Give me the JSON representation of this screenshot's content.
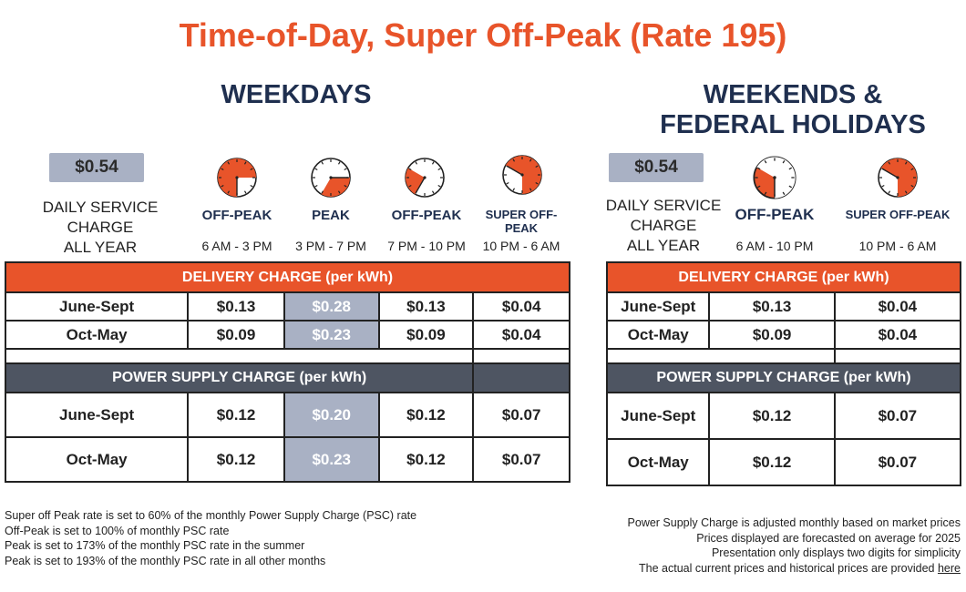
{
  "title": "Time-of-Day, Super Off-Peak (Rate 195)",
  "weekdays": {
    "heading": "WEEKDAYS",
    "service_charge": "$0.54",
    "service_label": [
      "DAILY SERVICE",
      "CHARGE",
      "ALL YEAR"
    ],
    "periods": [
      {
        "name": "OFF-PEAK",
        "hours": "6 AM - 3 PM",
        "start_hour": 6,
        "end_hour": 15
      },
      {
        "name": "PEAK",
        "hours": "3 PM - 7 PM",
        "start_hour": 15,
        "end_hour": 19
      },
      {
        "name": "OFF-PEAK",
        "hours": "7 PM - 10 PM",
        "start_hour": 19,
        "end_hour": 22
      },
      {
        "name": "SUPER OFF-PEAK",
        "hours": "10 PM - 6 AM",
        "start_hour": 22,
        "end_hour": 6
      }
    ],
    "delivery_header": "DELIVERY CHARGE  (per kWh)",
    "delivery_rows": [
      {
        "season": "June-Sept",
        "values": [
          "$0.13",
          "$0.28",
          "$0.13",
          "$0.04"
        ]
      },
      {
        "season": "Oct-May",
        "values": [
          "$0.09",
          "$0.23",
          "$0.09",
          "$0.04"
        ]
      }
    ],
    "supply_header": "POWER SUPPLY CHARGE  (per kWh)",
    "supply_rows": [
      {
        "season": "June-Sept",
        "values": [
          "$0.12",
          "$0.20",
          "$0.12",
          "$0.07"
        ]
      },
      {
        "season": "Oct-May",
        "values": [
          "$0.12",
          "$0.23",
          "$0.12",
          "$0.07"
        ]
      }
    ]
  },
  "weekends": {
    "heading_line1": "WEEKENDS &",
    "heading_line2": "FEDERAL HOLIDAYS",
    "service_charge": "$0.54",
    "service_label": [
      "DAILY SERVICE",
      "CHARGE",
      "ALL YEAR"
    ],
    "periods": [
      {
        "name": "OFF-PEAK",
        "hours": "6 AM - 10 PM",
        "start_hour": 6,
        "end_hour": 22
      },
      {
        "name": "SUPER OFF-PEAK",
        "hours": "10 PM - 6 AM",
        "start_hour": 22,
        "end_hour": 6
      }
    ],
    "delivery_header": "DELIVERY CHARGE  (per kWh)",
    "delivery_rows": [
      {
        "season": "June-Sept",
        "values": [
          "$0.13",
          "$0.04"
        ]
      },
      {
        "season": "Oct-May",
        "values": [
          "$0.09",
          "$0.04"
        ]
      }
    ],
    "supply_header": "POWER SUPPLY CHARGE  (per kWh)",
    "supply_rows": [
      {
        "season": "June-Sept",
        "values": [
          "$0.12",
          "$0.07"
        ]
      },
      {
        "season": "Oct-May",
        "values": [
          "$0.12",
          "$0.07"
        ]
      }
    ]
  },
  "notes_left": [
    "Super off Peak rate is set to 60% of the monthly Power Supply Charge (PSC) rate",
    "Off-Peak is set to 100% of monthly PSC rate",
    "Peak is set to 173% of the monthly PSC rate in the summer",
    "Peak is set to 193% of the monthly PSC rate in all other months"
  ],
  "notes_right": [
    "Power Supply Charge is adjusted monthly based on market prices",
    "Prices displayed are forecasted on average for 2025",
    "Presentation only displays two digits for simplicity"
  ],
  "notes_right_last": "The actual current prices and historical prices are provided",
  "notes_right_link": "here",
  "colors": {
    "accent": "#e8542a",
    "navy": "#1f2f4f",
    "peak_gray": "#a9b1c4",
    "slate": "#4e5562"
  }
}
